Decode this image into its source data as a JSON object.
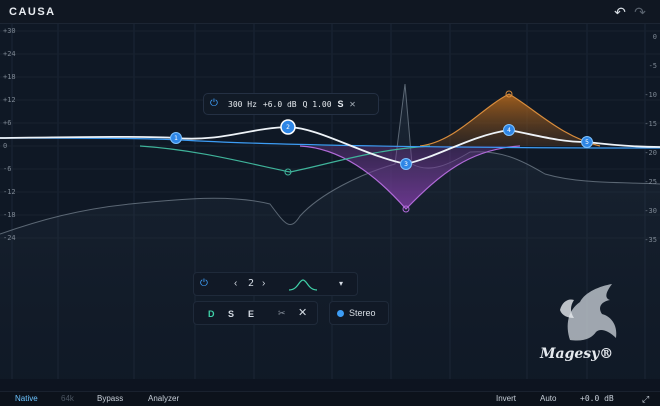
{
  "app": {
    "title": "CAUSA"
  },
  "toolbar": {
    "undo_icon": "undo-icon",
    "redo_icon": "redo-icon"
  },
  "graph": {
    "y_labels_left": [
      "+30",
      "+24",
      "+18",
      "+12",
      "+6",
      "0",
      "-6",
      "-12",
      "-18",
      "-24"
    ],
    "y_labels_right": [
      "0",
      "-5",
      "-10",
      "-15",
      "-20",
      "-25",
      "-30",
      "-35"
    ],
    "x_labels": [
      "10",
      "20",
      "50",
      "100",
      "200",
      "500",
      "1k",
      "2k",
      "5k",
      "10k",
      "20k"
    ]
  },
  "band_popup": {
    "freq": "300 Hz",
    "gain": "+6.0 dB",
    "q": "Q 1.00",
    "solo": "S",
    "power_icon": "power-icon",
    "close_icon": "close-icon"
  },
  "nodes": [
    "1",
    "2",
    "3",
    "4",
    "5"
  ],
  "band_controls": {
    "band_number": "2",
    "mode_d": "D",
    "mode_s": "S",
    "mode_e": "E",
    "stereo_label": "Stereo"
  },
  "brand": {
    "name": "Magesy®"
  },
  "footer": {
    "native": "Native",
    "64k": "64k",
    "bypass": "Bypass",
    "analyzer": "Analyzer",
    "invert": "Invert",
    "auto": "Auto",
    "gain": "+0.0 dB"
  },
  "colors": {
    "accent": "#3d9df5",
    "node_fill": "#2e86e6",
    "orange": "#d07a2a",
    "purple": "#9a4ec4",
    "teal": "#3fb39a"
  }
}
